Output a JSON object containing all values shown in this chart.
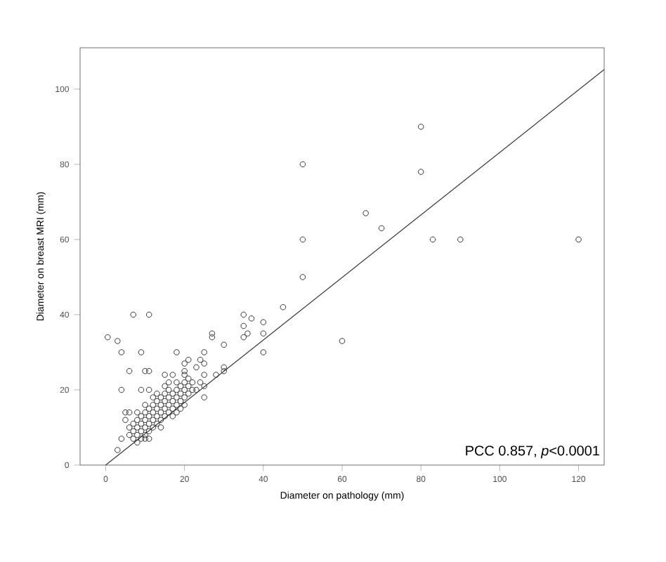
{
  "chart_data": {
    "type": "scatter",
    "xlabel": "Diameter on pathology (mm)",
    "ylabel": "Diameter on breast MRI (mm)",
    "annotations": [
      "PCC 0.857, *p*<0.0001"
    ],
    "xlim": [
      -6.5,
      126.5
    ],
    "ylim": [
      0,
      111
    ],
    "xticks": [
      0,
      20,
      40,
      60,
      80,
      100,
      120
    ],
    "yticks": [
      0,
      20,
      40,
      60,
      80,
      100
    ],
    "grid": false,
    "marker": "circle",
    "series": [
      {
        "color": "#333333",
        "x": [
          0.5,
          3,
          4,
          7,
          11,
          4,
          6,
          9,
          9,
          10,
          11,
          11,
          3,
          4,
          5,
          5,
          18,
          15,
          20,
          21,
          23,
          24,
          25,
          25,
          25,
          25,
          25,
          27,
          27,
          30,
          30,
          30,
          28,
          35,
          35,
          35,
          36,
          37,
          40,
          40,
          40,
          45,
          50,
          50,
          50,
          60,
          66,
          70,
          80,
          80,
          83,
          90,
          120,
          6,
          6,
          7,
          7,
          7,
          8,
          8,
          8,
          8,
          9,
          9,
          9,
          9,
          10,
          10,
          10,
          10,
          10,
          11,
          11,
          11,
          11,
          11,
          12,
          12,
          12,
          12,
          13,
          13,
          13,
          13,
          14,
          14,
          14,
          14,
          14,
          15,
          15,
          15,
          15,
          15,
          16,
          16,
          16,
          16,
          17,
          17,
          17,
          17,
          18,
          18,
          18,
          18,
          18,
          19,
          19,
          19,
          19,
          20,
          20,
          20,
          20,
          20,
          20,
          21,
          21,
          21,
          22,
          22,
          24,
          23,
          17,
          13,
          12,
          8,
          6,
          10,
          16
        ],
        "values": [
          34,
          33,
          30,
          40,
          40,
          20,
          25,
          30,
          20,
          25,
          25,
          20,
          4,
          7,
          14,
          12,
          30,
          24,
          27,
          28,
          26,
          28,
          30,
          27,
          24,
          21,
          18,
          35,
          34,
          32,
          26,
          25,
          24,
          40,
          37,
          34,
          35,
          39,
          38,
          35,
          30,
          42,
          80,
          60,
          50,
          33,
          67,
          63,
          90,
          78,
          60,
          60,
          60,
          8,
          10,
          7,
          9,
          11,
          6,
          8,
          10,
          12,
          7,
          9,
          11,
          13,
          8,
          10,
          12,
          14,
          7,
          9,
          11,
          13,
          15,
          7,
          10,
          12,
          14,
          16,
          11,
          13,
          15,
          17,
          10,
          12,
          14,
          16,
          18,
          13,
          15,
          17,
          19,
          21,
          14,
          16,
          18,
          20,
          13,
          15,
          17,
          19,
          14,
          16,
          18,
          20,
          22,
          15,
          17,
          19,
          21,
          16,
          18,
          20,
          22,
          24,
          25,
          19,
          21,
          23,
          20,
          22,
          22,
          20,
          24,
          19,
          18,
          14,
          14,
          16,
          22
        ]
      },
      {
        "type": "line",
        "color": "#333333",
        "marker": "none",
        "x": [
          0,
          126.5
        ],
        "values": [
          0,
          105.2
        ]
      }
    ]
  }
}
